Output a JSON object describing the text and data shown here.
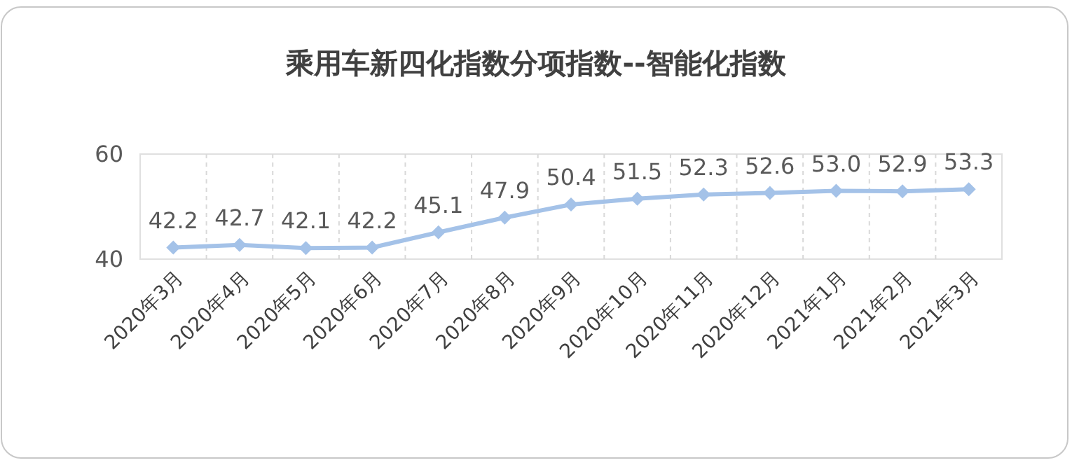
{
  "chart_data": {
    "type": "line",
    "title": "乘用车新四化指数分项指数--智能化指数",
    "categories": [
      "2020年3月",
      "2020年4月",
      "2020年5月",
      "2020年6月",
      "2020年7月",
      "2020年8月",
      "2020年9月",
      "2020年10月",
      "2020年11月",
      "2020年12月",
      "2021年1月",
      "2021年2月",
      "2021年3月"
    ],
    "series": [
      {
        "color": "#a4c2e8",
        "values": [
          42.2,
          42.7,
          42.1,
          42.2,
          45.1,
          47.9,
          50.4,
          51.5,
          52.3,
          52.6,
          53.0,
          52.9,
          53.3
        ]
      }
    ],
    "value_labels": [
      "42.2",
      "42.7",
      "42.1",
      "42.2",
      "45.1",
      "47.9",
      "50.4",
      "51.5",
      "52.3",
      "52.6",
      "53.0",
      "52.9",
      "53.3"
    ],
    "ylim": [
      40,
      60
    ],
    "yticks": [
      40,
      60
    ],
    "grid": "x",
    "marker": "diamond",
    "line_style": "solid"
  }
}
